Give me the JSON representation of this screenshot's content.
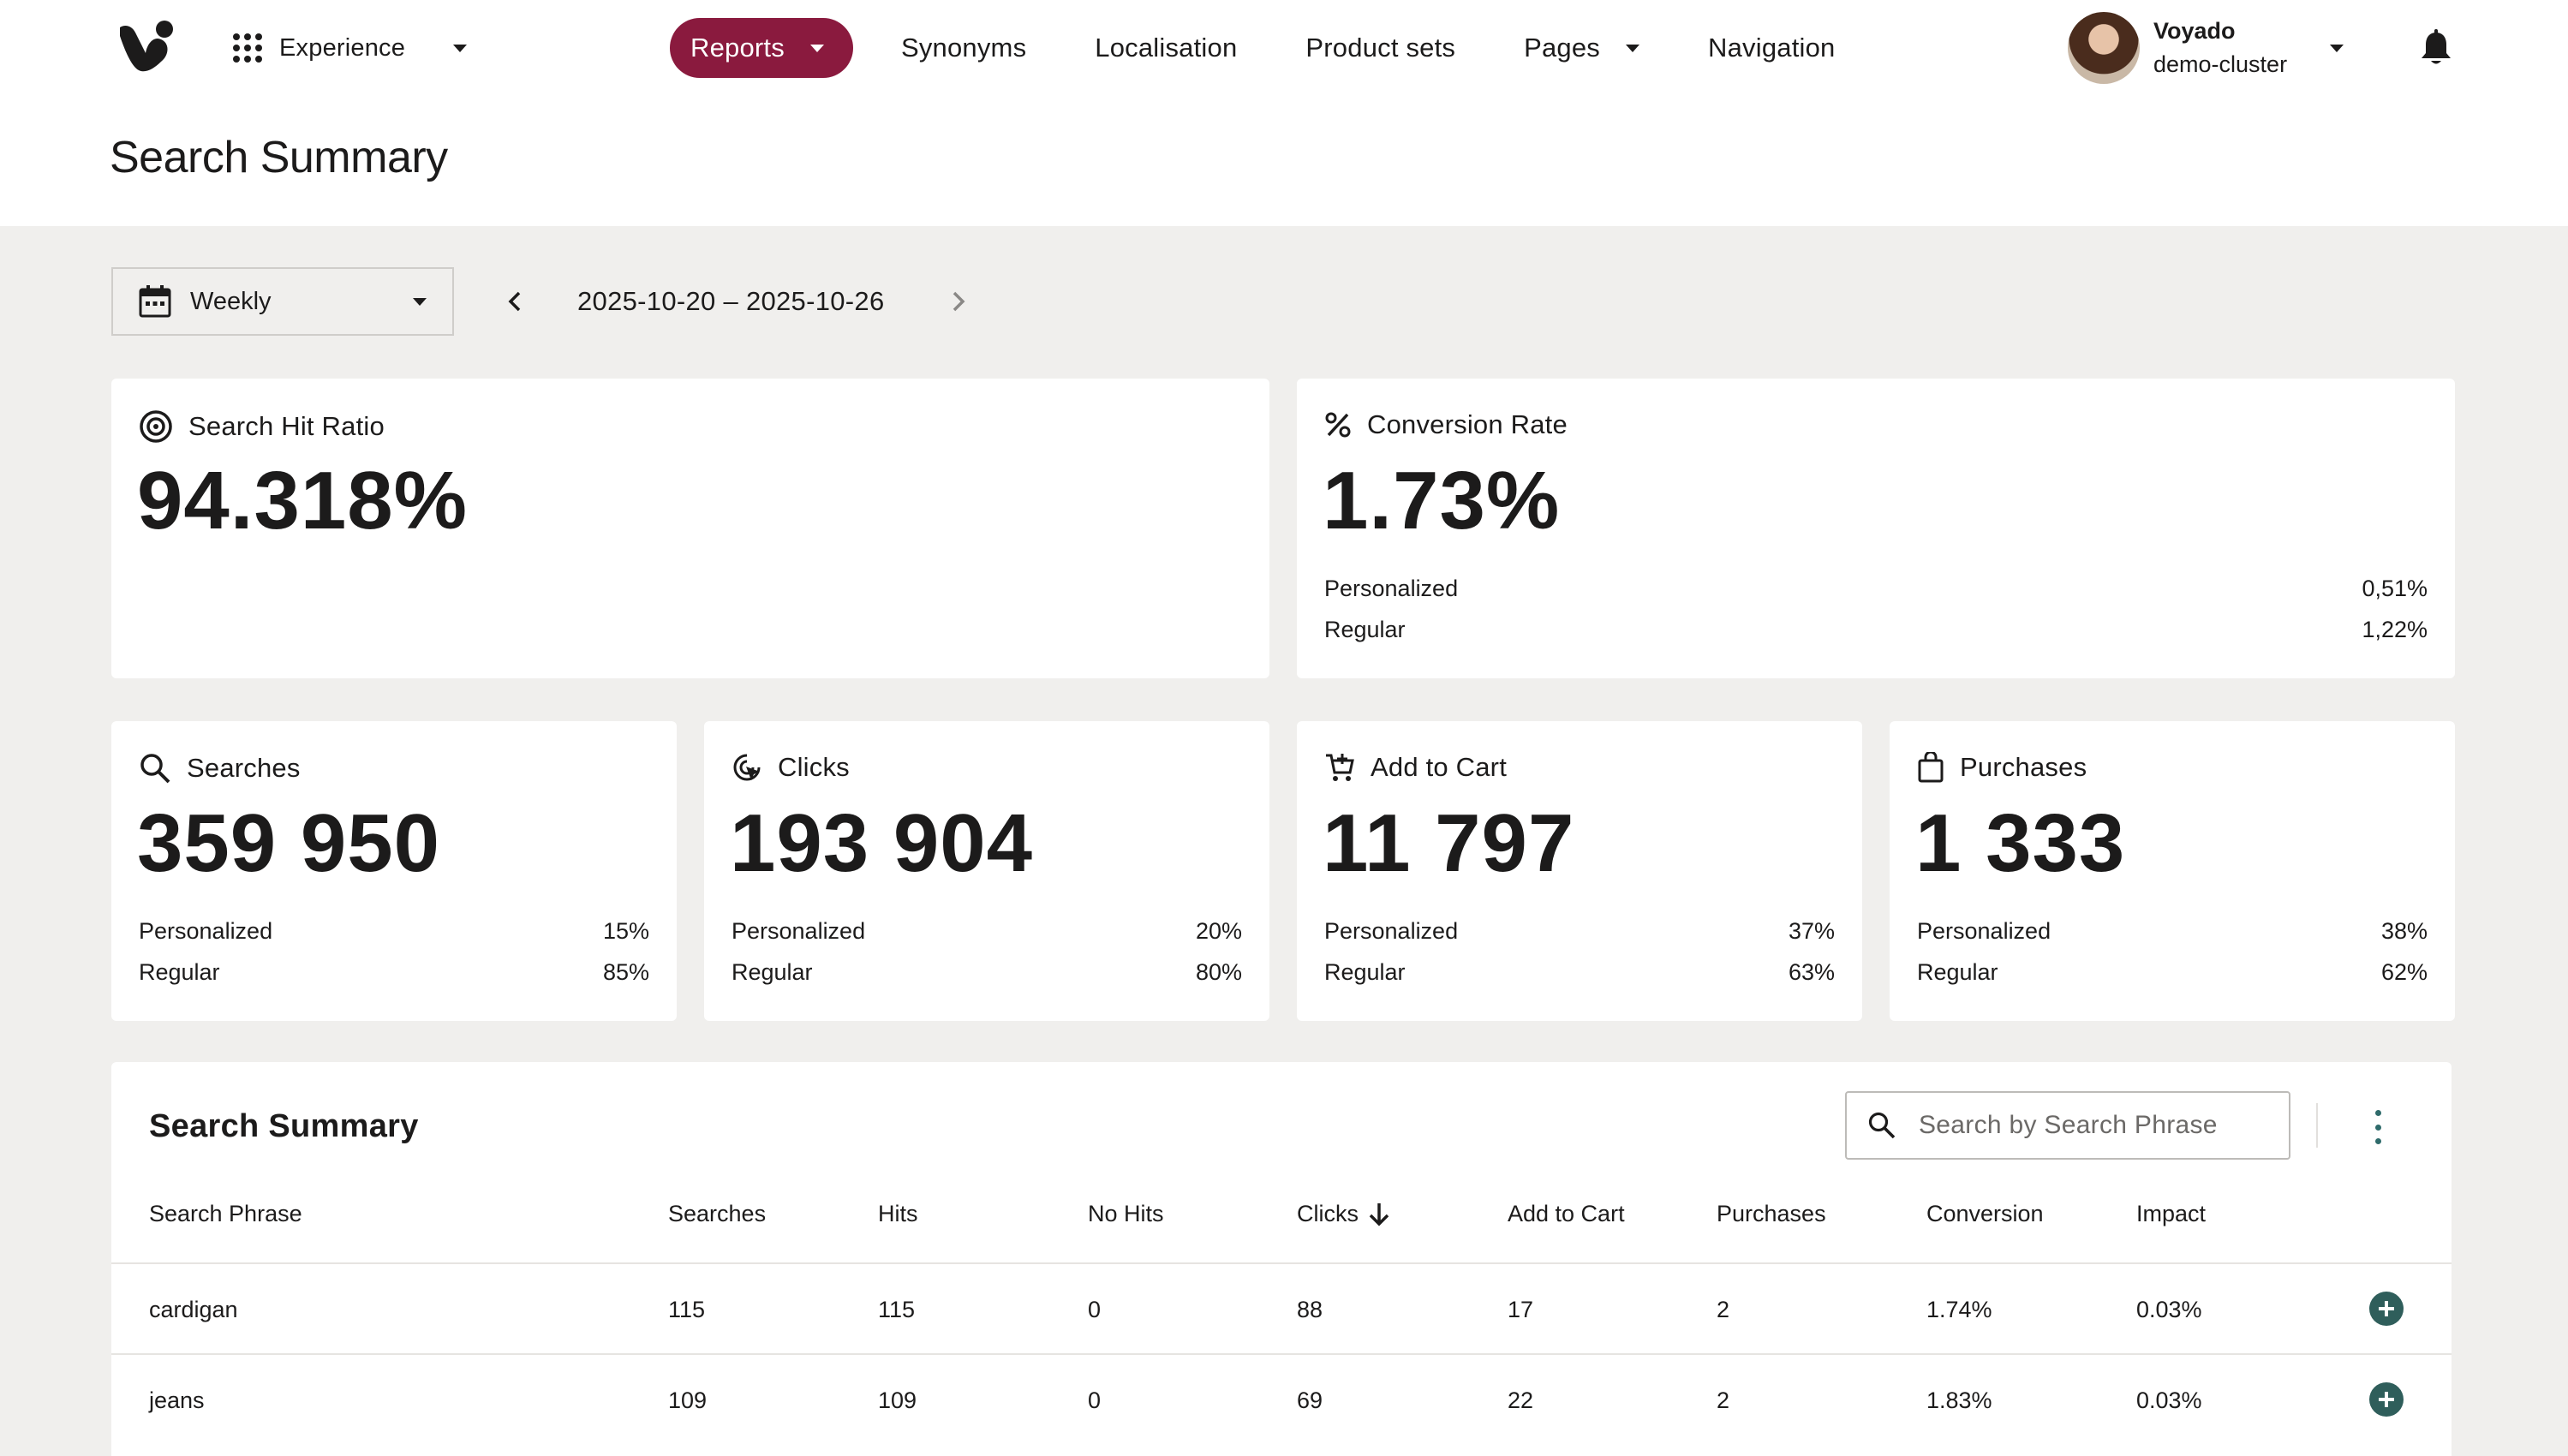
{
  "header": {
    "workspace": "Experience",
    "nav": [
      {
        "label": "Reports",
        "active": true,
        "dropdown": true
      },
      {
        "label": "Synonyms"
      },
      {
        "label": "Localisation"
      },
      {
        "label": "Product sets"
      },
      {
        "label": "Pages",
        "dropdown": true
      },
      {
        "label": "Navigation"
      }
    ],
    "user": {
      "name": "Voyado",
      "cluster": "demo-cluster"
    },
    "page_title": "Search Summary"
  },
  "controls": {
    "period": "Weekly",
    "date_range": "2025-10-20 – 2025-10-26"
  },
  "kpis": {
    "hit_ratio": {
      "label": "Search Hit Ratio",
      "value": "94.318%"
    },
    "conversion": {
      "label": "Conversion Rate",
      "value": "1.73%",
      "personalized_label": "Personalized",
      "personalized": "0,51%",
      "regular_label": "Regular",
      "regular": "1,22%"
    },
    "searches": {
      "label": "Searches",
      "value": "359 950",
      "personalized_label": "Personalized",
      "personalized": "15%",
      "regular_label": "Regular",
      "regular": "85%"
    },
    "clicks": {
      "label": "Clicks",
      "value": "193 904",
      "personalized_label": "Personalized",
      "personalized": "20%",
      "regular_label": "Regular",
      "regular": "80%"
    },
    "add_to_cart": {
      "label": "Add to Cart",
      "value": "11 797",
      "personalized_label": "Personalized",
      "personalized": "37%",
      "regular_label": "Regular",
      "regular": "63%"
    },
    "purchases": {
      "label": "Purchases",
      "value": "1 333",
      "personalized_label": "Personalized",
      "personalized": "38%",
      "regular_label": "Regular",
      "regular": "62%"
    }
  },
  "table": {
    "title": "Search Summary",
    "search_placeholder": "Search by Search Phrase",
    "columns": [
      "Search Phrase",
      "Searches",
      "Hits",
      "No Hits",
      "Clicks",
      "Add to Cart",
      "Purchases",
      "Conversion",
      "Impact"
    ],
    "rows": [
      [
        "cardigan",
        "115",
        "115",
        "0",
        "88",
        "17",
        "2",
        "1.74%",
        "0.03%"
      ],
      [
        "jeans",
        "109",
        "109",
        "0",
        "69",
        "22",
        "2",
        "1.83%",
        "0.03%"
      ]
    ]
  },
  "colors": {
    "accent": "#8a1a3e",
    "teal": "#2f5e5b",
    "background": "#f0efed"
  }
}
